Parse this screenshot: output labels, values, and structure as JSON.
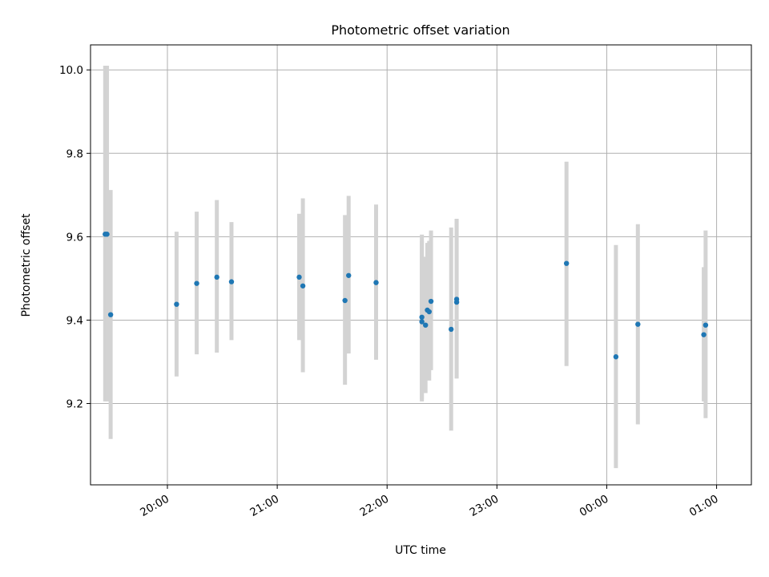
{
  "chart_data": {
    "type": "scatter",
    "title": "Photometric offset variation",
    "xlabel": "UTC time",
    "ylabel": "Photometric offset",
    "x_ticks": [
      "20:00",
      "21:00",
      "22:00",
      "23:00",
      "00:00",
      "01:00"
    ],
    "y_ticks": [
      "9.2",
      "9.4",
      "9.6",
      "9.8",
      "10.0"
    ],
    "grid": true,
    "xlim": [
      "19:18",
      "01:19"
    ],
    "ylim": [
      9.005,
      10.06
    ],
    "colors": {
      "point": "#1f77b4",
      "errorbar": "#d3d3d3"
    },
    "points": [
      {
        "t": "19:26",
        "y": 9.606,
        "lo": 9.205,
        "hi": 10.01
      },
      {
        "t": "19:27",
        "y": 9.606,
        "lo": 9.205,
        "hi": 10.01
      },
      {
        "t": "19:29",
        "y": 9.413,
        "lo": 9.115,
        "hi": 9.712
      },
      {
        "t": "20:05",
        "y": 9.438,
        "lo": 9.265,
        "hi": 9.612
      },
      {
        "t": "20:16",
        "y": 9.488,
        "lo": 9.318,
        "hi": 9.66
      },
      {
        "t": "20:27",
        "y": 9.503,
        "lo": 9.322,
        "hi": 9.688
      },
      {
        "t": "20:35",
        "y": 9.492,
        "lo": 9.352,
        "hi": 9.635
      },
      {
        "t": "21:12",
        "y": 9.503,
        "lo": 9.352,
        "hi": 9.655
      },
      {
        "t": "21:14",
        "y": 9.482,
        "lo": 9.275,
        "hi": 9.692
      },
      {
        "t": "21:37",
        "y": 9.447,
        "lo": 9.245,
        "hi": 9.652
      },
      {
        "t": "21:39",
        "y": 9.507,
        "lo": 9.32,
        "hi": 9.698
      },
      {
        "t": "21:54",
        "y": 9.49,
        "lo": 9.305,
        "hi": 9.677
      },
      {
        "t": "22:19",
        "y": 9.407,
        "lo": 9.21,
        "hi": 9.605
      },
      {
        "t": "22:19",
        "y": 9.396,
        "lo": 9.205,
        "hi": 9.59
      },
      {
        "t": "22:21",
        "y": 9.388,
        "lo": 9.225,
        "hi": 9.552
      },
      {
        "t": "22:22",
        "y": 9.424,
        "lo": 9.26,
        "hi": 9.585
      },
      {
        "t": "22:23",
        "y": 9.42,
        "lo": 9.255,
        "hi": 9.59
      },
      {
        "t": "22:24",
        "y": 9.445,
        "lo": 9.28,
        "hi": 9.615
      },
      {
        "t": "22:35",
        "y": 9.378,
        "lo": 9.135,
        "hi": 9.622
      },
      {
        "t": "22:38",
        "y": 9.443,
        "lo": 9.26,
        "hi": 9.643
      },
      {
        "t": "22:38",
        "y": 9.45,
        "lo": 9.26,
        "hi": 9.643
      },
      {
        "t": "23:38",
        "y": 9.536,
        "lo": 9.29,
        "hi": 9.78
      },
      {
        "t": "00:05",
        "y": 9.312,
        "lo": 9.045,
        "hi": 9.58
      },
      {
        "t": "00:17",
        "y": 9.39,
        "lo": 9.15,
        "hi": 9.63
      },
      {
        "t": "00:53",
        "y": 9.365,
        "lo": 9.205,
        "hi": 9.527
      },
      {
        "t": "00:54",
        "y": 9.388,
        "lo": 9.165,
        "hi": 9.615
      }
    ]
  }
}
